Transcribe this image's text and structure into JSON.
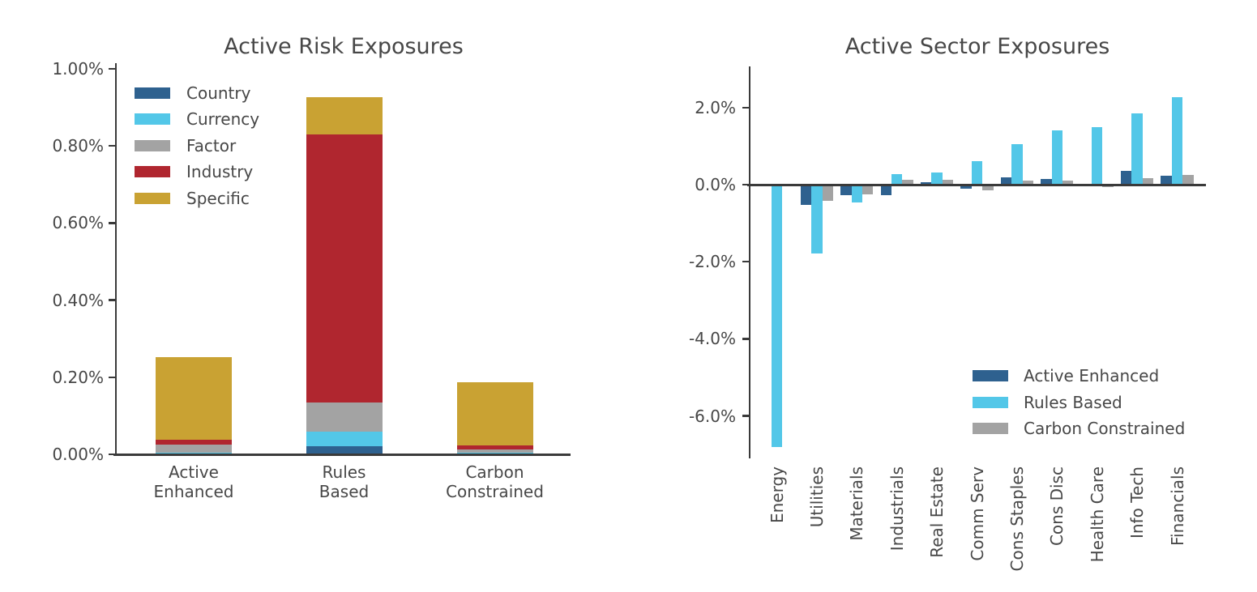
{
  "colors": {
    "country_blue": "#2E618F",
    "currency_cyan": "#53C7E8",
    "factor_gray": "#A3A3A3",
    "industry_red": "#B0262F",
    "specific_gold": "#C9A233",
    "axis": "#3A3A3A",
    "text": "#474747",
    "background": "#FFFFFF"
  },
  "chart_data": [
    {
      "type": "bar",
      "stacked": true,
      "title": "Active Risk Exposures",
      "categories": [
        "Active\nEnhanced",
        "Rules\nBased",
        "Carbon\nConstrained"
      ],
      "series": [
        {
          "name": "Country",
          "color": "#2E618F",
          "values": [
            0.002,
            0.02,
            0.002
          ]
        },
        {
          "name": "Currency",
          "color": "#53C7E8",
          "values": [
            0.003,
            0.038,
            0.003
          ]
        },
        {
          "name": "Factor",
          "color": "#A3A3A3",
          "values": [
            0.02,
            0.076,
            0.008
          ]
        },
        {
          "name": "Industry",
          "color": "#B0262F",
          "values": [
            0.012,
            0.695,
            0.01
          ]
        },
        {
          "name": "Specific",
          "color": "#C9A233",
          "values": [
            0.215,
            0.097,
            0.163
          ]
        }
      ],
      "totals": [
        0.252,
        0.926,
        0.186
      ],
      "ylabel": "",
      "xlabel": "",
      "ylim": [
        0,
        1.015
      ],
      "yticks": [
        {
          "label": "0.00%",
          "value": 0.0
        },
        {
          "label": "0.20%",
          "value": 0.2
        },
        {
          "label": "0.40%",
          "value": 0.4
        },
        {
          "label": "0.60%",
          "value": 0.6
        },
        {
          "label": "0.80%",
          "value": 0.8
        },
        {
          "label": "1.00%",
          "value": 1.0
        }
      ],
      "legend_position": "upper left",
      "grid": false
    },
    {
      "type": "bar",
      "grouped": true,
      "title": "Active Sector Exposures",
      "categories": [
        "Energy",
        "Utilities",
        "Materials",
        "Industrials",
        "Real Estate",
        "Comm Serv",
        "Cons Staples",
        "Cons Disc",
        "Health Care",
        "Info Tech",
        "Financials"
      ],
      "series": [
        {
          "name": "Active Enhanced",
          "color": "#2E618F",
          "values": [
            0,
            -0.52,
            -0.28,
            -0.27,
            0.07,
            -0.1,
            0.18,
            0.15,
            0.02,
            0.36,
            0.24
          ]
        },
        {
          "name": "Rules Based",
          "color": "#53C7E8",
          "values": [
            -6.8,
            -1.79,
            -0.46,
            0.27,
            0.31,
            0.6,
            1.06,
            1.41,
            1.49,
            1.85,
            2.26
          ]
        },
        {
          "name": "Carbon Constrained",
          "color": "#A3A3A3",
          "values": [
            0,
            -0.42,
            -0.25,
            0.12,
            0.13,
            -0.14,
            0.1,
            0.11,
            -0.06,
            0.17,
            0.25
          ]
        }
      ],
      "ylabel": "",
      "xlabel": "",
      "ylim": [
        -7.1,
        3.0
      ],
      "yticks": [
        {
          "label": "2.0%",
          "value": 2.0
        },
        {
          "label": "0.0%",
          "value": 0.0
        },
        {
          "label": "-2.0%",
          "value": -2.0
        },
        {
          "label": "-4.0%",
          "value": -4.0
        },
        {
          "label": "-6.0%",
          "value": -6.0
        }
      ],
      "legend_position": "lower right",
      "grid": false
    }
  ]
}
